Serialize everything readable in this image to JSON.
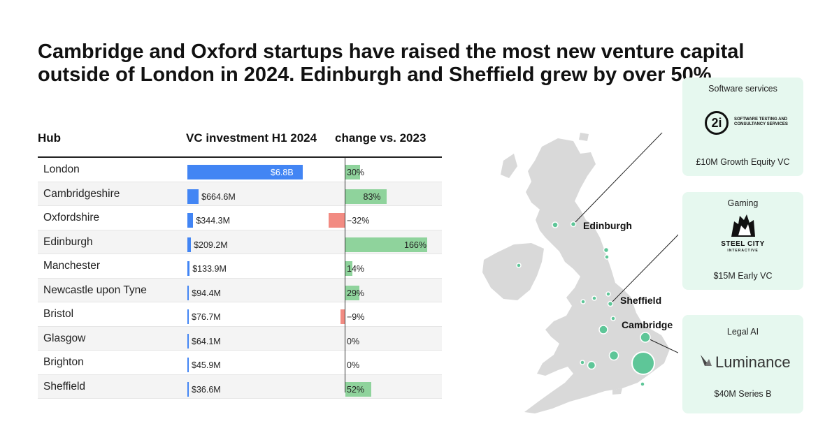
{
  "headline": "Cambridge and Oxford startups have raised the most new venture capital outside of London in 2024. Edinburgh and Sheffield grew by over 50%.",
  "table": {
    "col_hub": "Hub",
    "col_vc": "VC investment H1 2024",
    "col_change": "change vs. 2023"
  },
  "chart_data": {
    "type": "table",
    "columns": [
      "Hub",
      "VC investment H1 2024",
      "change vs. 2023"
    ],
    "rows": [
      {
        "hub": "London",
        "vc_label": "$6.8B",
        "vc_musd": 6800,
        "change_label": "30%",
        "change": 30
      },
      {
        "hub": "Cambridgeshire",
        "vc_label": "$664.6M",
        "vc_musd": 664.6,
        "change_label": "83%",
        "change": 83
      },
      {
        "hub": "Oxfordshire",
        "vc_label": "$344.3M",
        "vc_musd": 344.3,
        "change_label": "−32%",
        "change": -32
      },
      {
        "hub": "Edinburgh",
        "vc_label": "$209.2M",
        "vc_musd": 209.2,
        "change_label": "166%",
        "change": 166
      },
      {
        "hub": "Manchester",
        "vc_label": "$133.9M",
        "vc_musd": 133.9,
        "change_label": "14%",
        "change": 14
      },
      {
        "hub": "Newcastle upon Tyne",
        "vc_label": "$94.4M",
        "vc_musd": 94.4,
        "change_label": "29%",
        "change": 29
      },
      {
        "hub": "Bristol",
        "vc_label": "$76.7M",
        "vc_musd": 76.7,
        "change_label": "−9%",
        "change": -9
      },
      {
        "hub": "Glasgow",
        "vc_label": "$64.1M",
        "vc_musd": 64.1,
        "change_label": "0%",
        "change": 0
      },
      {
        "hub": "Brighton",
        "vc_label": "$45.9M",
        "vc_musd": 45.9,
        "change_label": "0%",
        "change": 0
      },
      {
        "hub": "Sheffield",
        "vc_label": "$36.6M",
        "vc_musd": 36.6,
        "change_label": "52%",
        "change": 52
      }
    ]
  },
  "map": {
    "labels": {
      "edinburgh": "Edinburgh",
      "sheffield": "Sheffield",
      "cambridge": "Cambridge"
    }
  },
  "cards": [
    {
      "category": "Software services",
      "logo_mark": "2i",
      "logo_text": "SOFTWARE TESTING AND CONSULTANCY SERVICES",
      "deal": "£10M Growth Equity VC"
    },
    {
      "category": "Gaming",
      "logo_text": "STEEL CITY",
      "logo_sub": "INTERACTIVE",
      "deal": "$15M Early VC"
    },
    {
      "category": "Legal AI",
      "logo_text": "Luminance",
      "deal": "$40M Series B"
    }
  ],
  "colors": {
    "vc_bar": "#4285f4",
    "positive": "#8fd39c",
    "negative": "#f28b82",
    "bubble": "#5ec698",
    "card_bg": "#e6f8ef",
    "land": "#d9d9d9"
  }
}
